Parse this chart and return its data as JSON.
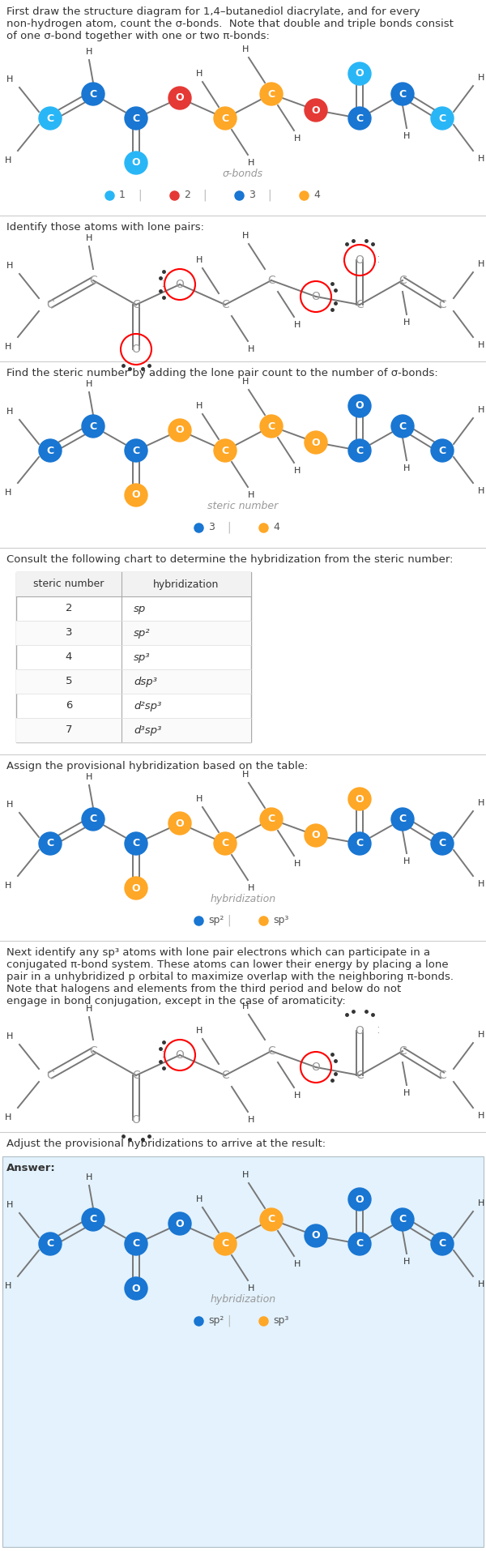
{
  "title_text": "First draw the structure diagram for 1,4–butanediol diacrylate, and for every\nnon-hydrogen atom, count the σ-bonds.  Note that double and triple bonds consist\nof one σ-bond together with one or two π-bonds:",
  "section2_text": "Identify those atoms with lone pairs:",
  "section3_text": "Find the steric number by adding the lone pair count to the number of σ-bonds:",
  "section4_text": "Consult the following chart to determine the hybridization from the steric number:",
  "section5_text": "Assign the provisional hybridization based on the table:",
  "section6_text": "Next identify any sp³ atoms with lone pair electrons which can participate in a\nconjugated π-bond system. These atoms can lower their energy by placing a lone\npair in a unhybridized p orbital to maximize overlap with the neighboring π-bonds.\nNote that halogens and elements from the third period and below do not\nengage in bond conjugation, except in the case of aromaticity:",
  "section7_text": "Adjust the provisional hybridizations to arrive at the result:",
  "answer_text": "Answer:",
  "colors": {
    "cyan": "#29B6F6",
    "red": "#E53935",
    "dark_blue": "#1976D2",
    "orange": "#FFA726",
    "light_blue": "#29B6F6"
  },
  "sigma_colors": {
    "C1": "#29B6F6",
    "C2": "#1976D2",
    "C3": "#1976D2",
    "O4": "#29B6F6",
    "O5": "#E53935",
    "C6": "#FFA726",
    "C7": "#FFA726",
    "C8": "#FFA726",
    "C9": "#FFA726",
    "O10": "#E53935",
    "C11": "#1976D2",
    "O12": "#29B6F6",
    "C13": "#1976D2",
    "C14": "#29B6F6"
  },
  "steric_colors": {
    "C1": "#1976D2",
    "C2": "#1976D2",
    "C3": "#1976D2",
    "O4": "#FFA726",
    "O5": "#FFA726",
    "C6": "#FFA726",
    "C7": "#FFA726",
    "C8": "#FFA726",
    "C9": "#FFA726",
    "O10": "#FFA726",
    "C11": "#1976D2",
    "O12": "#1976D2",
    "C13": "#1976D2",
    "C14": "#1976D2"
  },
  "hyb_colors": {
    "C1": "#1976D2",
    "C2": "#1976D2",
    "C3": "#1976D2",
    "O4": "#FFA726",
    "O5": "#FFA726",
    "C6": "#FFA726",
    "C7": "#FFA726",
    "C8": "#FFA726",
    "C9": "#FFA726",
    "O10": "#FFA726",
    "C11": "#1976D2",
    "O12": "#FFA726",
    "C13": "#1976D2",
    "C14": "#1976D2"
  },
  "final_colors": {
    "C1": "#1976D2",
    "C2": "#1976D2",
    "C3": "#1976D2",
    "O4": "#1976D2",
    "O5": "#1976D2",
    "C6": "#FFA726",
    "C7": "#FFA726",
    "C8": "#FFA726",
    "C9": "#FFA726",
    "O10": "#1976D2",
    "C11": "#1976D2",
    "O12": "#1976D2",
    "C13": "#1976D2",
    "C14": "#1976D2"
  },
  "table_rows": [
    [
      2,
      "sp"
    ],
    [
      3,
      "sp²"
    ],
    [
      4,
      "sp³"
    ],
    [
      5,
      "dsp³"
    ],
    [
      6,
      "d²sp³"
    ],
    [
      7,
      "d³sp³"
    ]
  ]
}
